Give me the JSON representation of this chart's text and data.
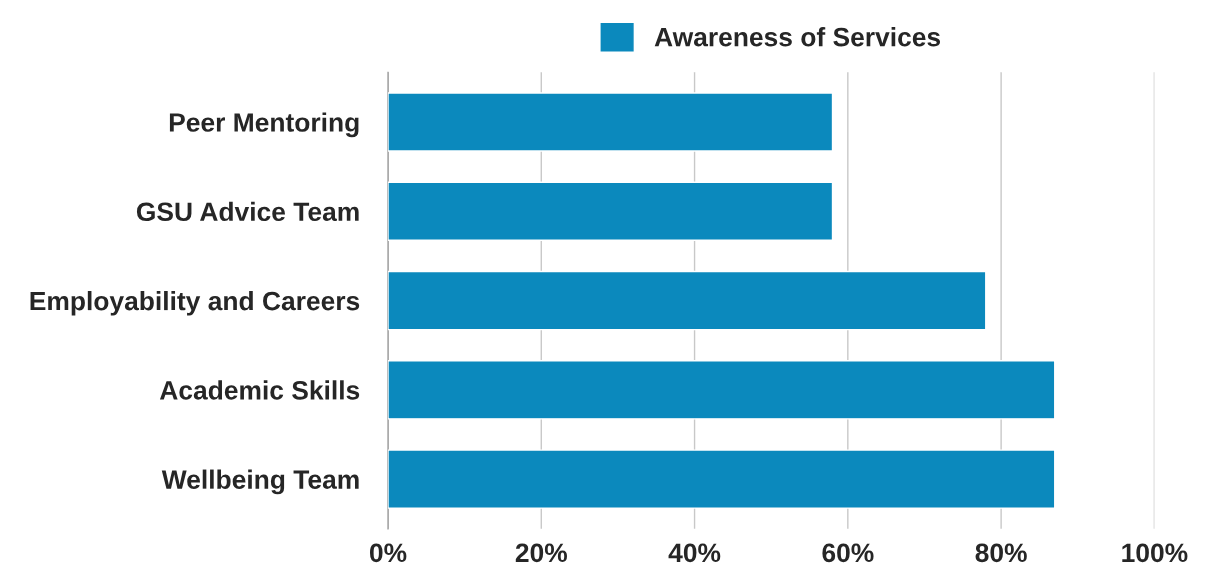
{
  "chart_data": {
    "type": "bar",
    "orientation": "horizontal",
    "categories": [
      "Peer Mentoring",
      "GSU Advice Team",
      "Employability and Careers",
      "Academic Skills",
      "Wellbeing Team"
    ],
    "series": [
      {
        "name": "Awareness of Services",
        "color": "#0b89bd",
        "values": [
          58,
          58,
          78,
          87,
          87
        ]
      }
    ],
    "xlim": [
      0,
      100
    ],
    "xticks": [
      {
        "value": 0,
        "label": "0%"
      },
      {
        "value": 20,
        "label": "20%"
      },
      {
        "value": 40,
        "label": "40%"
      },
      {
        "value": 60,
        "label": "60%"
      },
      {
        "value": 80,
        "label": "80%"
      },
      {
        "value": 100,
        "label": "100%"
      }
    ],
    "grid": "x",
    "legend": "top"
  }
}
